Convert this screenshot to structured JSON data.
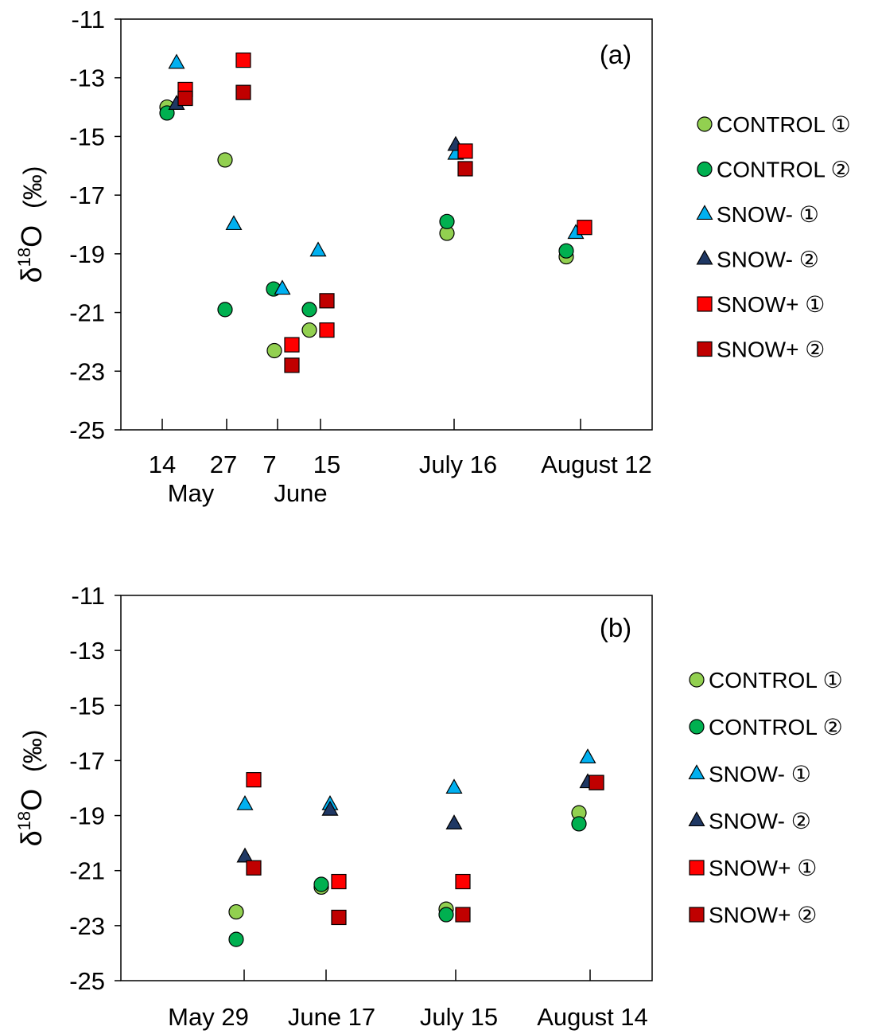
{
  "chart_data": [
    {
      "type": "scatter",
      "panel_label": "(a)",
      "ylabel": "δ18O (‰)",
      "ylabel_parts": {
        "delta": "δ",
        "sup": "18",
        "element": "O",
        "unit": "(‰)"
      },
      "ylim": [
        -25,
        -11
      ],
      "yticks": [
        -11,
        -13,
        -15,
        -17,
        -19,
        -21,
        -23,
        -25
      ],
      "xticks": [
        {
          "label": "14",
          "sublabel": "",
          "date": "May 14"
        },
        {
          "label": "27",
          "sublabel": "",
          "date": "May 27"
        },
        {
          "label": "7",
          "sublabel": "",
          "date": "June 7"
        },
        {
          "label": "15",
          "sublabel": "",
          "date": "June 15"
        },
        {
          "label": "July 16",
          "sublabel": "",
          "date": "July 16"
        },
        {
          "label": "August 12",
          "sublabel": "",
          "date": "August 12"
        }
      ],
      "month_labels": [
        {
          "text": "May",
          "under": [
            "May 14",
            "May 27"
          ]
        },
        {
          "text": "June",
          "under": [
            "June 7",
            "June 15"
          ]
        }
      ],
      "legend_position": "right",
      "grid": false,
      "series": [
        {
          "name": "CONTROL ①",
          "marker": "circle",
          "color": "#92D050",
          "points": [
            [
              "May 14",
              -14.0
            ],
            [
              "May 27",
              -15.8
            ],
            [
              "June 7",
              -22.3
            ],
            [
              "June 15",
              -21.6
            ],
            [
              "July 16",
              -18.3
            ],
            [
              "August 12",
              -19.1
            ]
          ]
        },
        {
          "name": "CONTROL ②",
          "marker": "circle",
          "color": "#00B050",
          "points": [
            [
              "May 14",
              -14.2
            ],
            [
              "May 27",
              -20.9
            ],
            [
              "June 7",
              -20.2
            ],
            [
              "June 15",
              -20.9
            ],
            [
              "July 16",
              -17.9
            ],
            [
              "August 12",
              -18.9
            ]
          ]
        },
        {
          "name": "SNOW- ①",
          "marker": "triangle",
          "color": "#00B0F0",
          "points": [
            [
              "May 14",
              -12.5
            ],
            [
              "May 27",
              -18.0
            ],
            [
              "June 7",
              -20.2
            ],
            [
              "June 15",
              -18.9
            ],
            [
              "July 16",
              -15.6
            ],
            [
              "August 12",
              -18.3
            ]
          ]
        },
        {
          "name": "SNOW- ②",
          "marker": "triangle",
          "color": "#1F3864",
          "points": [
            [
              "May 14",
              -13.9
            ],
            [
              "July 16",
              -15.3
            ]
          ]
        },
        {
          "name": "SNOW+ ①",
          "marker": "square",
          "color": "#FF0000",
          "points": [
            [
              "May 14",
              -13.4
            ],
            [
              "May 27",
              -12.4
            ],
            [
              "June 7",
              -22.1
            ],
            [
              "June 15",
              -21.6
            ],
            [
              "July 16",
              -15.5
            ],
            [
              "August 12",
              -18.1
            ]
          ]
        },
        {
          "name": "SNOW+ ②",
          "marker": "square",
          "color": "#C00000",
          "points": [
            [
              "May 14",
              -13.7
            ],
            [
              "May 27",
              -13.5
            ],
            [
              "June 7",
              -22.8
            ],
            [
              "June 15",
              -20.6
            ],
            [
              "July 16",
              -16.1
            ]
          ]
        }
      ]
    },
    {
      "type": "scatter",
      "panel_label": "(b)",
      "ylabel": "δ18O (‰)",
      "ylabel_parts": {
        "delta": "δ",
        "sup": "18",
        "element": "O",
        "unit": "(‰)"
      },
      "ylim": [
        -25,
        -11
      ],
      "yticks": [
        -11,
        -13,
        -15,
        -17,
        -19,
        -21,
        -23,
        -25
      ],
      "xticks": [
        {
          "label": "May 29",
          "sublabel": "",
          "date": "May 29"
        },
        {
          "label": "June 17",
          "sublabel": "",
          "date": "June 17"
        },
        {
          "label": "July 15",
          "sublabel": "",
          "date": "July 15"
        },
        {
          "label": "August 14",
          "sublabel": "",
          "date": "August 14"
        }
      ],
      "month_labels": [],
      "legend_position": "right",
      "grid": false,
      "series": [
        {
          "name": "CONTROL ①",
          "marker": "circle",
          "color": "#92D050",
          "points": [
            [
              "May 29",
              -22.5
            ],
            [
              "June 17",
              -21.6
            ],
            [
              "July 15",
              -22.4
            ],
            [
              "August 14",
              -18.9
            ]
          ]
        },
        {
          "name": "CONTROL ②",
          "marker": "circle",
          "color": "#00B050",
          "points": [
            [
              "May 29",
              -23.5
            ],
            [
              "June 17",
              -21.5
            ],
            [
              "July 15",
              -22.6
            ],
            [
              "August 14",
              -19.3
            ]
          ]
        },
        {
          "name": "SNOW- ①",
          "marker": "triangle",
          "color": "#00B0F0",
          "points": [
            [
              "May 29",
              -18.6
            ],
            [
              "June 17",
              -18.6
            ],
            [
              "July 15",
              -18.0
            ],
            [
              "August 14",
              -16.9
            ]
          ]
        },
        {
          "name": "SNOW- ②",
          "marker": "triangle",
          "color": "#1F3864",
          "points": [
            [
              "May 29",
              -20.5
            ],
            [
              "June 17",
              -18.8
            ],
            [
              "July 15",
              -19.3
            ],
            [
              "August 14",
              -17.8
            ]
          ]
        },
        {
          "name": "SNOW+ ①",
          "marker": "square",
          "color": "#FF0000",
          "points": [
            [
              "May 29",
              -17.7
            ],
            [
              "June 17",
              -21.4
            ],
            [
              "July 15",
              -21.4
            ],
            [
              "August 14",
              -17.8
            ]
          ]
        },
        {
          "name": "SNOW+ ②",
          "marker": "square",
          "color": "#C00000",
          "points": [
            [
              "May 29",
              -20.9
            ],
            [
              "June 17",
              -22.7
            ],
            [
              "July 15",
              -22.6
            ],
            [
              "August 14",
              -17.8
            ]
          ]
        }
      ]
    }
  ]
}
